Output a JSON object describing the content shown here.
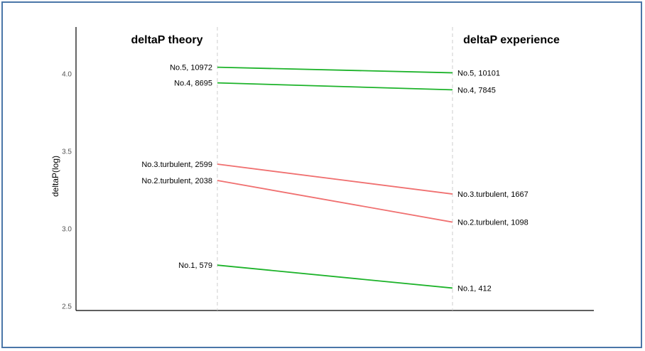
{
  "chart_data": {
    "type": "line",
    "chart_subtype": "slope",
    "title": "",
    "xlabel": "",
    "ylabel": "deltaP(log)",
    "ylim": [
      2.47,
      4.3
    ],
    "yticks": [
      2.5,
      3.0,
      3.5,
      4.0
    ],
    "ytick_labels": [
      "2.5",
      "3.0",
      "3.5",
      "4.0"
    ],
    "columns": [
      "deltaP theory",
      "deltaP experience"
    ],
    "grid": false,
    "legend": "none",
    "colors": {
      "increase_or_small_drop": "#1db32a",
      "large_drop": "#f07070",
      "axis": "#000000",
      "column_line": "#cccccc"
    },
    "series": [
      {
        "left_label": "No.5, 10972",
        "right_label": "No.5, 10101",
        "values": [
          4.0403,
          4.0044
        ],
        "color": "green"
      },
      {
        "left_label": "No.4, 8695",
        "right_label": "No.4, 7845",
        "values": [
          3.9393,
          3.8946
        ],
        "color": "green"
      },
      {
        "left_label": "No.3.turbulent, 2599",
        "right_label": "No.3.turbulent, 1667",
        "values": [
          3.4148,
          3.2219
        ],
        "color": "red"
      },
      {
        "left_label": "No.2.turbulent, 2038",
        "right_label": "No.2.turbulent, 1098",
        "values": [
          3.3092,
          3.0406
        ],
        "color": "red"
      },
      {
        "left_label": "No.1, 579",
        "right_label": "No.1, 412",
        "values": [
          2.7627,
          2.6149
        ],
        "color": "green"
      }
    ]
  }
}
